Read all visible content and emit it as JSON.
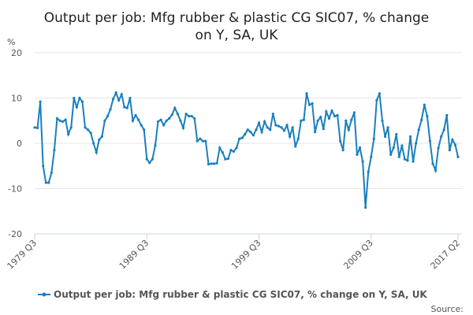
{
  "chart_data": {
    "type": "line",
    "title": "Output per job: Mfg rubber & plastic CG SIC07, % change on Y, SA, UK",
    "y_label": "%",
    "source": "Source:",
    "categories": [
      "1979 Q3",
      null,
      null,
      null,
      null,
      null,
      null,
      null,
      null,
      null,
      null,
      null,
      null,
      null,
      null,
      null,
      null,
      null,
      null,
      null,
      null,
      null,
      null,
      null,
      null,
      null,
      null,
      null,
      null,
      null,
      null,
      null,
      null,
      null,
      null,
      null,
      null,
      null,
      null,
      null,
      "1989 Q3",
      null,
      null,
      null,
      null,
      null,
      null,
      null,
      null,
      null,
      null,
      null,
      null,
      null,
      null,
      null,
      null,
      null,
      null,
      null,
      null,
      null,
      null,
      null,
      null,
      null,
      null,
      null,
      null,
      null,
      null,
      null,
      null,
      null,
      null,
      null,
      null,
      null,
      null,
      null,
      "1999 Q3",
      null,
      null,
      null,
      null,
      null,
      null,
      null,
      null,
      null,
      null,
      null,
      null,
      null,
      null,
      null,
      null,
      null,
      null,
      null,
      null,
      null,
      null,
      null,
      null,
      null,
      null,
      null,
      null,
      null,
      null,
      null,
      null,
      null,
      null,
      null,
      null,
      null,
      null,
      null,
      "2009 Q3",
      null,
      null,
      null,
      null,
      null,
      null,
      null,
      null,
      null,
      null,
      null,
      null,
      null,
      null,
      null,
      null,
      null,
      null,
      null,
      null,
      null,
      null,
      null,
      null,
      null,
      null,
      null,
      null,
      null,
      null,
      "2017 Q2"
    ],
    "series": [
      {
        "name": "Output per job: Mfg rubber & plastic CG SIC07, % change on Y, SA, UK",
        "color": "#1a7fbd",
        "values": [
          3.5,
          3.4,
          9.2,
          -5,
          -8.7,
          -8.7,
          -6.5,
          -1.5,
          5.5,
          5,
          4.8,
          5.2,
          2,
          3.5,
          10,
          8,
          10,
          9.2,
          3.5,
          3,
          2.3,
          0,
          -2,
          0.8,
          1.5,
          5,
          6,
          7.5,
          9.8,
          11.2,
          9.5,
          10.8,
          8,
          7.8,
          10,
          5,
          6.2,
          5.2,
          4,
          3,
          -3.5,
          -4.3,
          -3.5,
          -0.5,
          4.8,
          5.2,
          4,
          5,
          5.5,
          6.3,
          7.8,
          6.5,
          5,
          3.4,
          6.5,
          6,
          6,
          5.5,
          0.5,
          1,
          0.5,
          0.5,
          -4.6,
          -4.5,
          -4.5,
          -4.4,
          -1,
          -2,
          -3.5,
          -3.4,
          -1.5,
          -1.8,
          -1,
          1,
          1.2,
          2,
          3,
          2.5,
          1.8,
          3,
          4.5,
          2.5,
          4.8,
          3.5,
          3,
          6.5,
          4,
          3.8,
          3.5,
          2.8,
          4,
          1.5,
          3.5,
          -0.7,
          1,
          5,
          5.2,
          11,
          8.5,
          8.8,
          2.5,
          5,
          5.8,
          3.2,
          7,
          5.5,
          7.2,
          6,
          6.2,
          0.5,
          -1.5,
          5,
          3,
          5.2,
          6.8,
          -2.5,
          -1,
          -4,
          -14.2,
          -6.3,
          -3,
          1,
          9.5,
          11,
          5,
          1.5,
          3.5,
          -2.5,
          -1,
          2,
          -3,
          -0.5,
          -3.5,
          -3.8,
          1.5,
          -4,
          0,
          3,
          5.2,
          8.5,
          6,
          0.5,
          -4.5,
          -6,
          -1,
          1.5,
          3,
          6.2,
          -1.5,
          0.8,
          -0.3,
          -3
        ]
      }
    ],
    "ylim": [
      -20,
      20
    ],
    "yticks": [
      -20,
      -10,
      0,
      10,
      20
    ],
    "grid": true,
    "legend": "bottom"
  }
}
